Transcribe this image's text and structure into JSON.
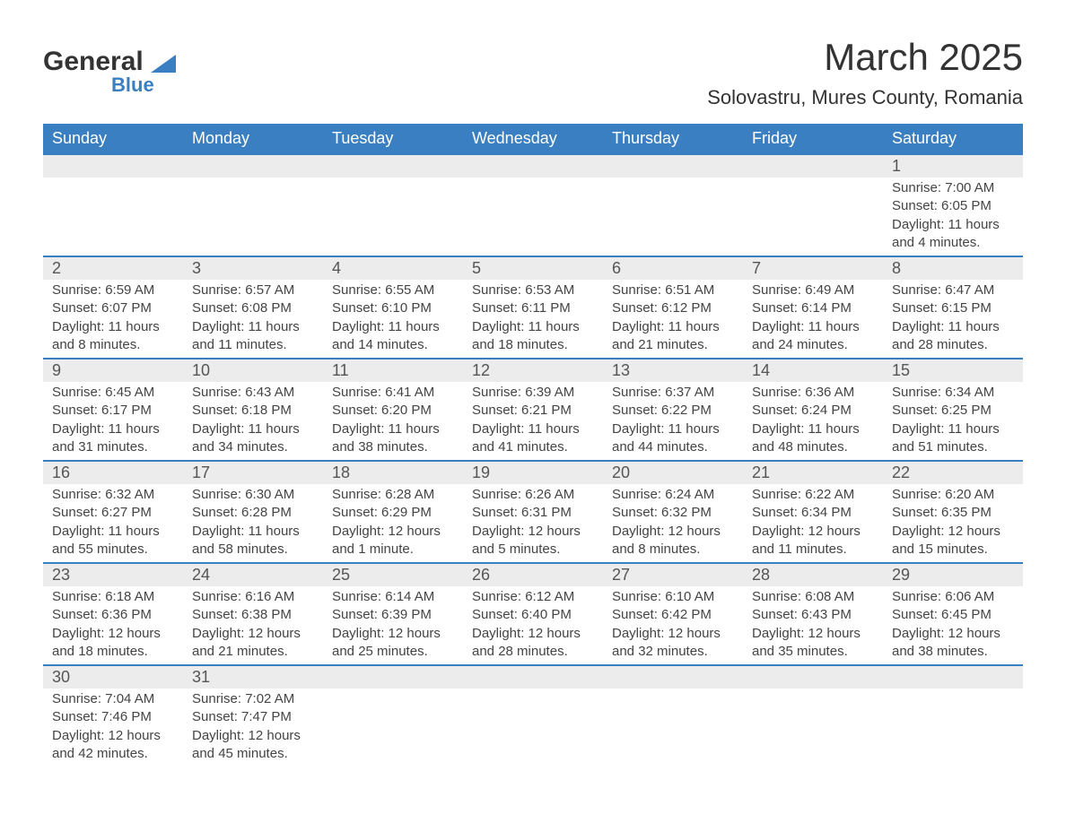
{
  "logo": {
    "main": "General",
    "sub": "Blue"
  },
  "title": "March 2025",
  "location": "Solovastru, Mures County, Romania",
  "colors": {
    "header_bg": "#3a7fc1",
    "header_text": "#ffffff",
    "daynum_bg": "#ececec",
    "border": "#3a7fc1",
    "text": "#333333",
    "logo_blue": "#3a7fc1"
  },
  "weekdays": [
    "Sunday",
    "Monday",
    "Tuesday",
    "Wednesday",
    "Thursday",
    "Friday",
    "Saturday"
  ],
  "weeks": [
    [
      null,
      null,
      null,
      null,
      null,
      null,
      {
        "n": "1",
        "sr": "7:00 AM",
        "ss": "6:05 PM",
        "dl": "11 hours and 4 minutes."
      }
    ],
    [
      {
        "n": "2",
        "sr": "6:59 AM",
        "ss": "6:07 PM",
        "dl": "11 hours and 8 minutes."
      },
      {
        "n": "3",
        "sr": "6:57 AM",
        "ss": "6:08 PM",
        "dl": "11 hours and 11 minutes."
      },
      {
        "n": "4",
        "sr": "6:55 AM",
        "ss": "6:10 PM",
        "dl": "11 hours and 14 minutes."
      },
      {
        "n": "5",
        "sr": "6:53 AM",
        "ss": "6:11 PM",
        "dl": "11 hours and 18 minutes."
      },
      {
        "n": "6",
        "sr": "6:51 AM",
        "ss": "6:12 PM",
        "dl": "11 hours and 21 minutes."
      },
      {
        "n": "7",
        "sr": "6:49 AM",
        "ss": "6:14 PM",
        "dl": "11 hours and 24 minutes."
      },
      {
        "n": "8",
        "sr": "6:47 AM",
        "ss": "6:15 PM",
        "dl": "11 hours and 28 minutes."
      }
    ],
    [
      {
        "n": "9",
        "sr": "6:45 AM",
        "ss": "6:17 PM",
        "dl": "11 hours and 31 minutes."
      },
      {
        "n": "10",
        "sr": "6:43 AM",
        "ss": "6:18 PM",
        "dl": "11 hours and 34 minutes."
      },
      {
        "n": "11",
        "sr": "6:41 AM",
        "ss": "6:20 PM",
        "dl": "11 hours and 38 minutes."
      },
      {
        "n": "12",
        "sr": "6:39 AM",
        "ss": "6:21 PM",
        "dl": "11 hours and 41 minutes."
      },
      {
        "n": "13",
        "sr": "6:37 AM",
        "ss": "6:22 PM",
        "dl": "11 hours and 44 minutes."
      },
      {
        "n": "14",
        "sr": "6:36 AM",
        "ss": "6:24 PM",
        "dl": "11 hours and 48 minutes."
      },
      {
        "n": "15",
        "sr": "6:34 AM",
        "ss": "6:25 PM",
        "dl": "11 hours and 51 minutes."
      }
    ],
    [
      {
        "n": "16",
        "sr": "6:32 AM",
        "ss": "6:27 PM",
        "dl": "11 hours and 55 minutes."
      },
      {
        "n": "17",
        "sr": "6:30 AM",
        "ss": "6:28 PM",
        "dl": "11 hours and 58 minutes."
      },
      {
        "n": "18",
        "sr": "6:28 AM",
        "ss": "6:29 PM",
        "dl": "12 hours and 1 minute."
      },
      {
        "n": "19",
        "sr": "6:26 AM",
        "ss": "6:31 PM",
        "dl": "12 hours and 5 minutes."
      },
      {
        "n": "20",
        "sr": "6:24 AM",
        "ss": "6:32 PM",
        "dl": "12 hours and 8 minutes."
      },
      {
        "n": "21",
        "sr": "6:22 AM",
        "ss": "6:34 PM",
        "dl": "12 hours and 11 minutes."
      },
      {
        "n": "22",
        "sr": "6:20 AM",
        "ss": "6:35 PM",
        "dl": "12 hours and 15 minutes."
      }
    ],
    [
      {
        "n": "23",
        "sr": "6:18 AM",
        "ss": "6:36 PM",
        "dl": "12 hours and 18 minutes."
      },
      {
        "n": "24",
        "sr": "6:16 AM",
        "ss": "6:38 PM",
        "dl": "12 hours and 21 minutes."
      },
      {
        "n": "25",
        "sr": "6:14 AM",
        "ss": "6:39 PM",
        "dl": "12 hours and 25 minutes."
      },
      {
        "n": "26",
        "sr": "6:12 AM",
        "ss": "6:40 PM",
        "dl": "12 hours and 28 minutes."
      },
      {
        "n": "27",
        "sr": "6:10 AM",
        "ss": "6:42 PM",
        "dl": "12 hours and 32 minutes."
      },
      {
        "n": "28",
        "sr": "6:08 AM",
        "ss": "6:43 PM",
        "dl": "12 hours and 35 minutes."
      },
      {
        "n": "29",
        "sr": "6:06 AM",
        "ss": "6:45 PM",
        "dl": "12 hours and 38 minutes."
      }
    ],
    [
      {
        "n": "30",
        "sr": "7:04 AM",
        "ss": "7:46 PM",
        "dl": "12 hours and 42 minutes."
      },
      {
        "n": "31",
        "sr": "7:02 AM",
        "ss": "7:47 PM",
        "dl": "12 hours and 45 minutes."
      },
      null,
      null,
      null,
      null,
      null
    ]
  ],
  "labels": {
    "sunrise": "Sunrise:",
    "sunset": "Sunset:",
    "daylight": "Daylight:"
  }
}
